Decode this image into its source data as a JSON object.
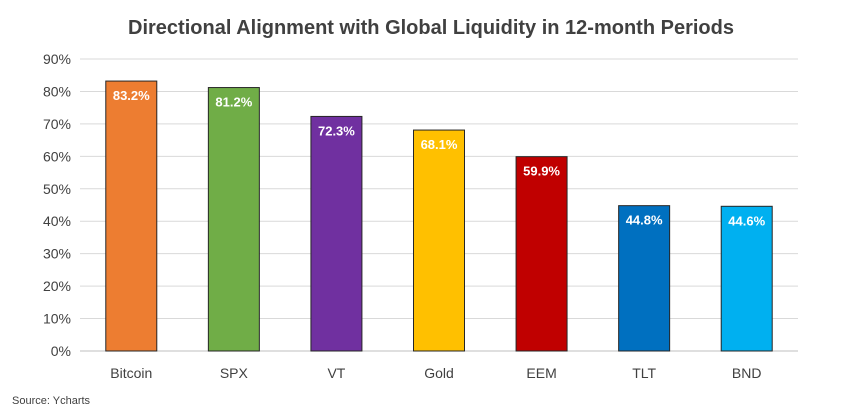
{
  "chart_data": {
    "type": "bar",
    "title": "Directional Alignment with Global Liquidity in 12-month Periods",
    "xlabel": "",
    "ylabel": "",
    "categories": [
      "Bitcoin",
      "SPX",
      "VT",
      "Gold",
      "EEM",
      "TLT",
      "BND"
    ],
    "values": [
      83.2,
      81.2,
      72.3,
      68.1,
      59.9,
      44.8,
      44.6
    ],
    "data_labels": [
      "83.2%",
      "81.2%",
      "72.3%",
      "68.1%",
      "59.9%",
      "44.8%",
      "44.6%"
    ],
    "bar_colors": [
      "#ed7d31",
      "#70ad47",
      "#7030a0",
      "#ffc000",
      "#c00000",
      "#0070c0",
      "#00b0f0"
    ],
    "ylim": [
      0,
      90
    ],
    "yticks": [
      0,
      10,
      20,
      30,
      40,
      50,
      60,
      70,
      80,
      90
    ],
    "ytick_labels": [
      "0%",
      "10%",
      "20%",
      "30%",
      "40%",
      "50%",
      "60%",
      "70%",
      "80%",
      "90%"
    ],
    "grid": true,
    "legend": "none"
  },
  "source": "Source: Ycharts"
}
